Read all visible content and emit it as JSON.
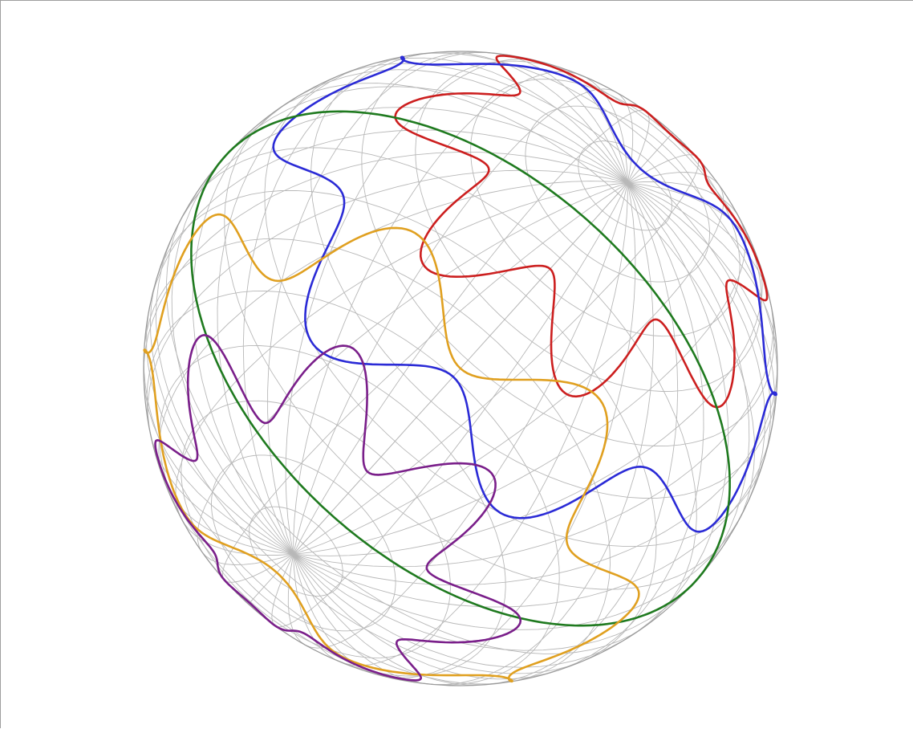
{
  "figure": {
    "kind": "wireframe sphere with closed curves drawn on its surface",
    "grid": true,
    "colors": {
      "background": "#ffffff",
      "grid": "#b8b8b8",
      "outline": "#9a9a9a"
    },
    "curves": [
      {
        "id": "red",
        "color": "#cc1f1f",
        "offset_deg": 54,
        "lobes": 7,
        "wave_amplitude_deg": 9
      },
      {
        "id": "blue",
        "color": "#2b2bd6",
        "offset_deg": 28,
        "lobes": 7,
        "wave_amplitude_deg": 8
      },
      {
        "id": "green",
        "color": "#1f7a1f",
        "offset_deg": 0,
        "lobes": 0,
        "wave_amplitude_deg": 0
      },
      {
        "id": "orange",
        "color": "#e0a020",
        "offset_deg": -30,
        "lobes": 7,
        "wave_amplitude_deg": 8
      },
      {
        "id": "purple",
        "color": "#7a1f8a",
        "offset_deg": -55,
        "lobes": 7,
        "wave_amplitude_deg": 9
      }
    ]
  }
}
